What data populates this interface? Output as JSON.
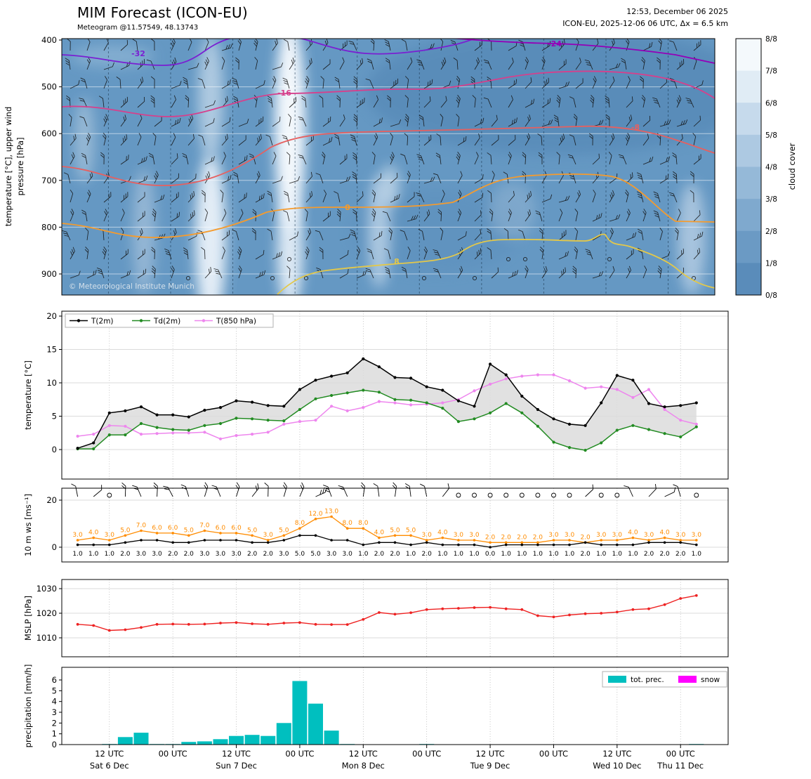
{
  "header": {
    "title": "MIM Forecast (ICON-EU)",
    "subtitle": "Meteogram @11.57549, 48.13743",
    "timestamp": "12:53, December 06 2025",
    "model_info": "ICON-EU, 2025-12-06 06 UTC, Δx = 6.5 km"
  },
  "palette": {
    "t2m": "#000000",
    "td2m": "#228b22",
    "t850": "#ee86ee",
    "mslp": "#ee2222",
    "wind_mean": "#000000",
    "wind_gust": "#ff8c00",
    "precip": "#00bfbf",
    "snow": "#ff00ff",
    "contours": {
      "-32": "#7a1fd2",
      "-24": "#9400b8",
      "-16": "#d6408c",
      "-8": "#e66060",
      "0": "#f59b2d",
      "8": "#e3c84a"
    },
    "cloud_colors_0_to_8": [
      "#4b80b2",
      "#5a8cba",
      "#6b9ac4",
      "#7fa9ce",
      "#95b9d8",
      "#adc9e2",
      "#c6daec",
      "#e0ecf5",
      "#f4f9fc"
    ]
  },
  "time_axis": {
    "axis_start_hour": -3,
    "axis_end_hour": 123,
    "step_hours": 3,
    "ticks": [
      {
        "hour": 6,
        "label": "12 UTC"
      },
      {
        "hour": 18,
        "label": "00 UTC"
      },
      {
        "hour": 30,
        "label": "12 UTC"
      },
      {
        "hour": 42,
        "label": "00 UTC"
      },
      {
        "hour": 54,
        "label": "12 UTC"
      },
      {
        "hour": 66,
        "label": "00 UTC"
      },
      {
        "hour": 78,
        "label": "12 UTC"
      },
      {
        "hour": 90,
        "label": "00 UTC"
      },
      {
        "hour": 102,
        "label": "12 UTC"
      },
      {
        "hour": 114,
        "label": "00 UTC"
      }
    ],
    "day_labels": [
      {
        "hour": 6,
        "label": "Sat 6 Dec"
      },
      {
        "hour": 30,
        "label": "Sun 7 Dec"
      },
      {
        "hour": 54,
        "label": "Mon 8 Dec"
      },
      {
        "hour": 78,
        "label": "Tue 9 Dec"
      },
      {
        "hour": 102,
        "label": "Wed 10 Dec"
      },
      {
        "hour": 114,
        "label": "Thu 11 Dec"
      }
    ]
  },
  "chart_data": [
    {
      "id": "upper_air",
      "type": "heatmap",
      "description": "Cloud cover shading with temperature contours [°C] and wind barbs vs pressure",
      "ylabel_lines": [
        "temperature [°C], upper wind",
        "pressure [hPa]"
      ],
      "yticks": [
        400,
        500,
        600,
        700,
        800,
        900
      ],
      "ylim": [
        400,
        945
      ],
      "contours": [
        "-32",
        "-24",
        "-16",
        "-8",
        "0",
        "8"
      ],
      "colorbar": {
        "title": "cloud cover",
        "tick_labels": [
          "8/8",
          "7/8",
          "6/8",
          "5/8",
          "4/8",
          "3/8",
          "2/8",
          "1/8",
          "0/8"
        ]
      },
      "watermark": "© Meteorological Institute Munich"
    },
    {
      "id": "temperature",
      "type": "line",
      "ylabel": "temperature [°C]",
      "yticks": [
        0,
        5,
        10,
        15,
        20
      ],
      "ylim": [
        -4,
        21
      ],
      "legend": [
        "T(2m)",
        "Td(2m)",
        "T(850 hPa)"
      ],
      "series": [
        {
          "name": "T(2m)",
          "values": [
            0.2,
            1.0,
            5.5,
            5.8,
            6.4,
            5.2,
            5.2,
            4.9,
            5.9,
            6.3,
            7.3,
            7.1,
            6.6,
            6.5,
            9.0,
            10.4,
            11.0,
            11.5,
            13.6,
            12.4,
            10.8,
            10.7,
            9.4,
            8.9,
            7.3,
            6.5,
            12.8,
            11.2,
            8.0,
            6.0,
            4.6,
            3.8,
            3.6,
            7.0,
            11.1,
            10.4,
            6.9,
            6.4,
            6.6,
            7.0
          ]
        },
        {
          "name": "Td(2m)",
          "values": [
            0.1,
            0.1,
            2.2,
            2.2,
            3.9,
            3.3,
            3.0,
            2.9,
            3.6,
            3.9,
            4.7,
            4.6,
            4.4,
            4.3,
            6.0,
            7.6,
            8.1,
            8.5,
            8.9,
            8.6,
            7.5,
            7.4,
            7.0,
            6.2,
            4.2,
            4.6,
            5.5,
            6.9,
            5.5,
            3.5,
            1.1,
            0.3,
            -0.1,
            1.0,
            2.9,
            3.6,
            3.0,
            2.4,
            1.9,
            3.4
          ]
        },
        {
          "name": "T(850 hPa)",
          "values": [
            2.0,
            2.3,
            3.6,
            3.5,
            2.3,
            2.4,
            2.5,
            2.5,
            2.6,
            1.6,
            2.1,
            2.3,
            2.6,
            3.8,
            4.2,
            4.4,
            6.5,
            5.8,
            6.3,
            7.2,
            7.0,
            6.7,
            6.8,
            7.0,
            7.5,
            8.8,
            9.8,
            10.6,
            11.0,
            11.2,
            11.2,
            10.3,
            9.2,
            9.4,
            9.0,
            7.8,
            9.0,
            6.0,
            4.4,
            3.8
          ]
        }
      ]
    },
    {
      "id": "wind",
      "type": "line",
      "ylabel": "10 m ws [ms⁻¹]",
      "yticks": [
        0,
        20
      ],
      "ylim": [
        -2,
        25
      ],
      "series": [
        {
          "name": "10 m wind speed",
          "values": [
            1.0,
            1.0,
            1.0,
            2.0,
            3.0,
            3.0,
            2.0,
            2.0,
            3.0,
            3.0,
            3.0,
            2.0,
            2.0,
            3.0,
            5.0,
            5.0,
            3.0,
            3.0,
            1.0,
            2.0,
            2.0,
            1.0,
            2.0,
            1.0,
            1.0,
            1.0,
            0.0,
            1.0,
            1.0,
            1.0,
            1.0,
            1.0,
            2.0,
            1.0,
            1.0,
            1.0,
            2.0,
            2.0,
            2.0,
            1.0
          ]
        },
        {
          "name": "wind gusts",
          "values": [
            3.0,
            4.0,
            3.0,
            5.0,
            7.0,
            6.0,
            6.0,
            5.0,
            7.0,
            6.0,
            6.0,
            5.0,
            3.0,
            5.0,
            8.0,
            12.0,
            13.0,
            8.0,
            8.0,
            4.0,
            5.0,
            5.0,
            3.0,
            4.0,
            3.0,
            3.0,
            2.0,
            2.0,
            2.0,
            2.0,
            3.0,
            3.0,
            2.0,
            3.0,
            3.0,
            4.0,
            3.0,
            4.0,
            3.0,
            3.0
          ]
        }
      ]
    },
    {
      "id": "mslp",
      "type": "line",
      "ylabel": "MSLP [hPa]",
      "yticks": [
        1010,
        1020,
        1030
      ],
      "ylim": [
        1008,
        1032
      ],
      "values": [
        1015.5,
        1015.0,
        1013.0,
        1013.3,
        1014.2,
        1015.5,
        1015.6,
        1015.5,
        1015.6,
        1016.0,
        1016.2,
        1015.7,
        1015.5,
        1016.0,
        1016.2,
        1015.5,
        1015.4,
        1015.4,
        1017.5,
        1020.3,
        1019.6,
        1020.2,
        1021.5,
        1021.8,
        1022.0,
        1022.3,
        1022.4,
        1021.8,
        1021.5,
        1019.0,
        1018.5,
        1019.3,
        1019.8,
        1020.0,
        1020.5,
        1021.5,
        1021.8,
        1023.5,
        1026.0,
        1027.2
      ]
    },
    {
      "id": "precipitation",
      "type": "bar",
      "ylabel": "precipitation [mm/h]",
      "yticks": [
        0,
        1,
        2,
        3,
        4,
        5,
        6
      ],
      "ylim": [
        0,
        6.5
      ],
      "legend": [
        "tot. prec.",
        "snow"
      ],
      "series": [
        {
          "name": "tot. prec.",
          "values": [
            0,
            0,
            0.05,
            0.7,
            1.1,
            0.05,
            0.05,
            0.25,
            0.3,
            0.5,
            0.8,
            0.9,
            0.8,
            2.0,
            5.9,
            3.8,
            1.3,
            0.05,
            0,
            0,
            0,
            0,
            0.05,
            0,
            0,
            0,
            0,
            0,
            0,
            0,
            0,
            0,
            0,
            0,
            0,
            0,
            0,
            0,
            0,
            0.05
          ]
        },
        {
          "name": "snow",
          "values": [
            0,
            0,
            0,
            0,
            0,
            0,
            0,
            0,
            0,
            0,
            0,
            0,
            0,
            0,
            0,
            0,
            0,
            0,
            0,
            0,
            0,
            0,
            0,
            0,
            0,
            0,
            0,
            0,
            0,
            0,
            0,
            0,
            0,
            0,
            0,
            0,
            0,
            0,
            0,
            0
          ]
        }
      ]
    }
  ]
}
